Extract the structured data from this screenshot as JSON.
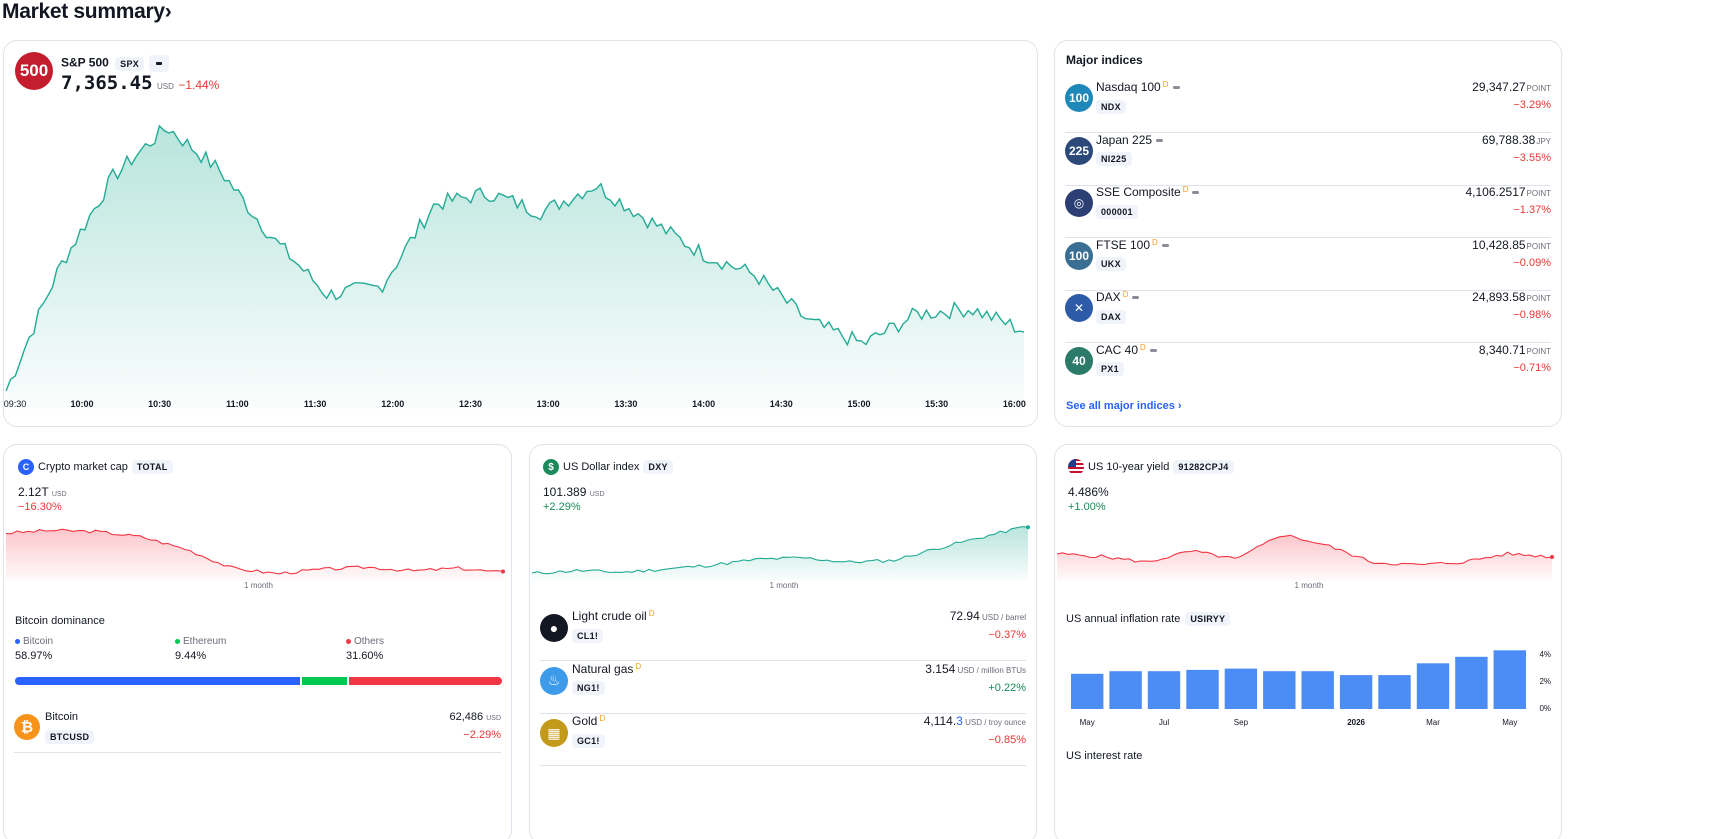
{
  "page": {
    "title": "Market summary",
    "title_chevron": "›"
  },
  "spx": {
    "logo": "500",
    "name": "S&P 500",
    "ticker": "SPX",
    "price": "7,365.45",
    "currency": "USD",
    "change": "−1.44%",
    "time_labels": [
      "09:30",
      "10:00",
      "10:30",
      "11:00",
      "11:30",
      "12:00",
      "12:30",
      "13:00",
      "13:30",
      "14:00",
      "14:30",
      "15:00",
      "15:30",
      "16:00"
    ]
  },
  "indices": {
    "title": "Major indices",
    "see_all": "See all major indices ›",
    "items": [
      {
        "logo": "100",
        "name": "Nasdaq 100",
        "d": "D",
        "code": "NDX",
        "value": "29,347.27",
        "unit": "POINT",
        "change": "−3.29%"
      },
      {
        "logo": "225",
        "name": "Japan 225",
        "d": "",
        "code": "NI225",
        "value": "69,788.38",
        "unit": "JPY",
        "change": "−3.55%"
      },
      {
        "logo": "",
        "name": "SSE Composite",
        "d": "D",
        "code": "000001",
        "value": "4,106.2517",
        "unit": "POINT",
        "change": "−1.37%"
      },
      {
        "logo": "100",
        "name": "FTSE 100",
        "d": "D",
        "code": "UKX",
        "value": "10,428.85",
        "unit": "POINT",
        "change": "−0.09%"
      },
      {
        "logo": "",
        "name": "DAX",
        "d": "D",
        "code": "DAX",
        "value": "24,893.58",
        "unit": "POINT",
        "change": "−0.98%"
      },
      {
        "logo": "40",
        "name": "CAC 40",
        "d": "D",
        "code": "PX1",
        "value": "8,340.71",
        "unit": "POINT",
        "change": "−0.71%"
      }
    ]
  },
  "crypto": {
    "title": "Crypto market cap",
    "tag": "TOTAL",
    "value": "2.12",
    "value_suffix": "T",
    "currency": "USD",
    "change": "−16.30%",
    "period": "1 month",
    "dominance_title": "Bitcoin dominance",
    "dominance": [
      {
        "label": "Bitcoin",
        "value": "58.97%",
        "color": "#2962ff",
        "share": 58.97
      },
      {
        "label": "Ethereum",
        "value": "9.44%",
        "color": "#00c853",
        "share": 9.44
      },
      {
        "label": "Others",
        "value": "31.60%",
        "color": "#f23645",
        "share": 31.6
      }
    ],
    "bitcoin": {
      "name": "Bitcoin",
      "code": "BTCUSD",
      "value": "62,486",
      "unit": "USD",
      "change": "−2.29%"
    }
  },
  "dxy": {
    "title": "US Dollar index",
    "tag": "DXY",
    "value": "101.389",
    "currency": "USD",
    "change": "+2.29%",
    "period": "1 month",
    "commodities": [
      {
        "name": "Light crude oil",
        "d": "D",
        "code": "CL1!",
        "value": "72.94",
        "unit": "USD / barrel",
        "change": "−0.37%",
        "positive": false,
        "icon": "oil-drop-icon"
      },
      {
        "name": "Natural gas",
        "d": "D",
        "code": "NG1!",
        "value": "3.154",
        "unit": "USD / million BTUs",
        "change": "+0.22%",
        "positive": true,
        "icon": "flame-icon"
      },
      {
        "name": "Gold",
        "d": "D",
        "code": "GC1!",
        "value": "4,114.",
        "value_tail": "3",
        "unit": "USD / troy ounce",
        "change": "−0.85%",
        "positive": false,
        "icon": "gold-bars-icon"
      }
    ]
  },
  "yield": {
    "title": "US 10-year yield",
    "tag": "91282CPJ4",
    "value": "4.486%",
    "change": "+1.00%",
    "period": "1 month",
    "inflation_title": "US annual inflation rate",
    "inflation_tag": "USIRYY",
    "inflation_bars": [
      2.7,
      2.9,
      2.9,
      3.0,
      3.1,
      2.9,
      2.9,
      2.6,
      2.6,
      3.5,
      4.0,
      4.5
    ],
    "x_labels": [
      "May",
      "Jul",
      "Sep",
      "2026",
      "Mar",
      "May"
    ],
    "y_labels": [
      "4%",
      "2%",
      "0%"
    ],
    "interest_title": "US interest rate"
  }
}
